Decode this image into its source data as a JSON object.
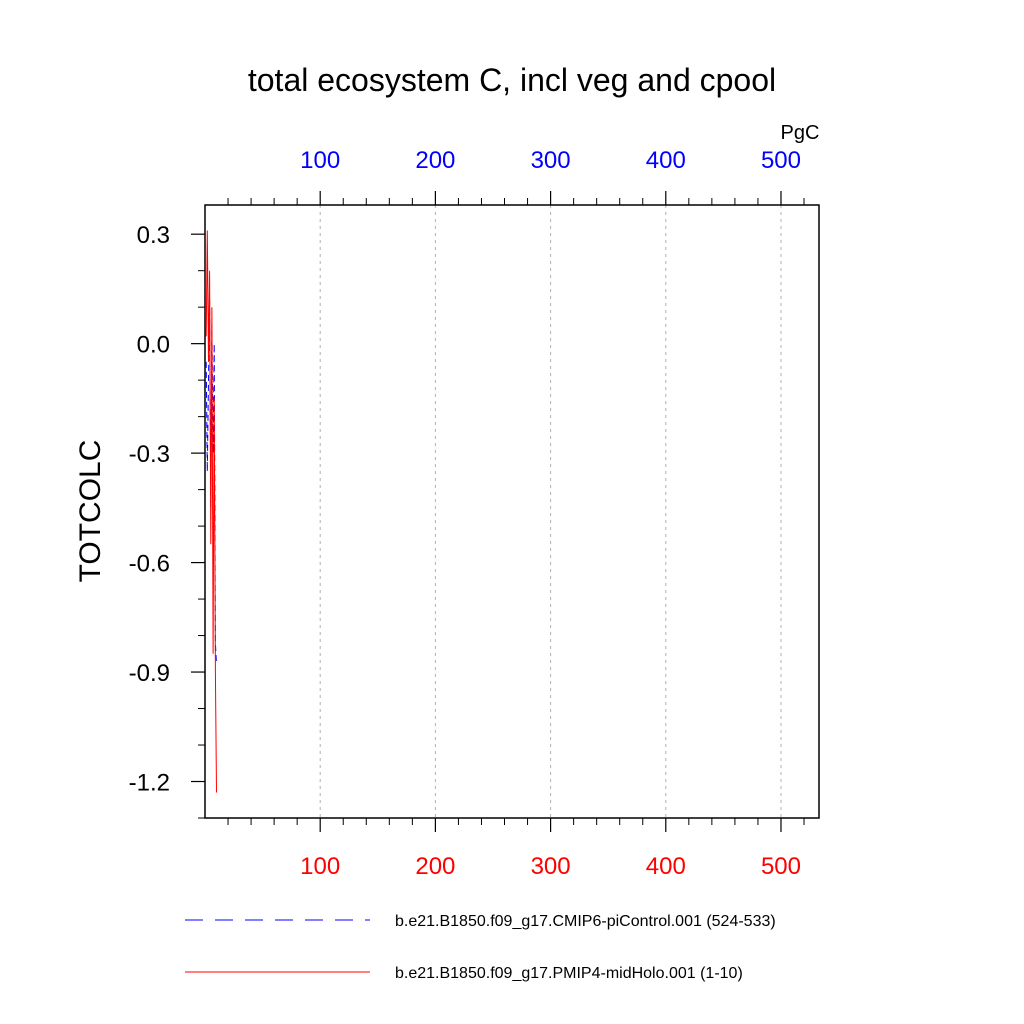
{
  "chart_data": {
    "type": "line",
    "title": "total ecosystem C, incl veg and cpool",
    "ylabel": "TOTCOLC",
    "top_axis_unit": "PgC",
    "ylim": [
      -1.3,
      0.38
    ],
    "xlim": [
      0,
      533
    ],
    "yticks": [
      0.3,
      0.0,
      -0.3,
      -0.6,
      -0.9,
      -1.2
    ],
    "ytick_labels": [
      "0.3",
      "0.0",
      "-0.3",
      "-0.6",
      "-0.9",
      "-1.2"
    ],
    "xticks": [
      100,
      200,
      300,
      400,
      500
    ],
    "top_tick_labels": [
      "100",
      "200",
      "300",
      "400",
      "500"
    ],
    "bottom_tick_labels": [
      "100",
      "200",
      "300",
      "400",
      "500"
    ],
    "top_axis_color": "#0000ff",
    "bottom_axis_color": "#ff0000",
    "grid": "vertical-dashed",
    "series": [
      {
        "name": "b.e21.B1850.f09_g17.CMIP6-piControl.001 (524-533)",
        "color": "#0000ff",
        "dash": "dashed",
        "x": [
          1,
          2,
          3,
          4,
          5,
          6,
          7,
          8,
          9,
          10
        ],
        "values": [
          -0.05,
          -0.35,
          -0.1,
          0.12,
          -0.45,
          0.05,
          -0.3,
          0.0,
          -0.82,
          -0.88
        ]
      },
      {
        "name": "b.e21.B1850.f09_g17.PMIP4-midHolo.001 (1-10)",
        "color": "#ff0000",
        "dash": "solid",
        "x": [
          1,
          2,
          3,
          4,
          5,
          6,
          7,
          8,
          9,
          10
        ],
        "values": [
          0.02,
          0.31,
          -0.05,
          0.2,
          -0.55,
          0.1,
          -0.85,
          -0.15,
          -0.9,
          -1.23
        ]
      }
    ]
  }
}
